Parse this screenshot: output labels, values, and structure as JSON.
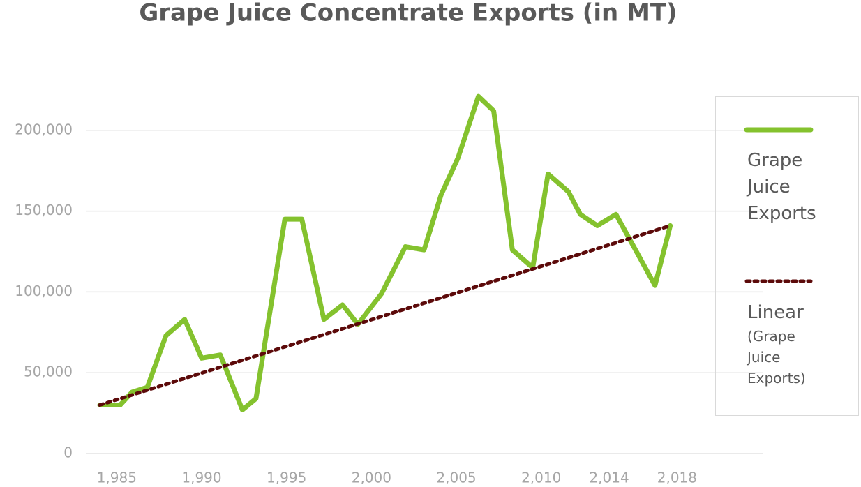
{
  "chart_data": {
    "type": "line",
    "title": "Grape Juice Concentrate Exports (in MT)",
    "series": [
      {
        "name": "Grape Juice Exports",
        "color": "#84c22e",
        "style": "solid",
        "x": [
          1984.0,
          1985.2,
          1985.9,
          1986.8,
          1987.9,
          1989.0,
          1990.0,
          1991.1,
          1992.4,
          1993.2,
          1994.9,
          1995.9,
          1997.2,
          1998.3,
          1999.2,
          2000.6,
          2002.0,
          2003.1,
          2004.1,
          2005.1,
          2006.3,
          2007.2,
          2008.3,
          2009.5,
          2010.4,
          2011.6,
          2012.3,
          2013.3,
          2014.4,
          2015.5,
          2016.7,
          2017.6
        ],
        "values": [
          30000,
          30000,
          38000,
          41000,
          73000,
          83000,
          59000,
          61000,
          27000,
          34000,
          145000,
          145000,
          83000,
          92000,
          80000,
          99000,
          128000,
          126000,
          160000,
          183000,
          221000,
          212000,
          126000,
          115000,
          173000,
          162000,
          148000,
          141000,
          148000,
          127000,
          104000,
          141000
        ]
      },
      {
        "name": "Linear (Grape Juice Exports)",
        "color": "#5c0a0a",
        "style": "dotted",
        "x": [
          1984.0,
          2017.6
        ],
        "values": [
          30000,
          141000
        ]
      }
    ],
    "xlim": [
      1984.0,
      2021.6
    ],
    "xticks": [
      {
        "value": 1985,
        "label": "1,985"
      },
      {
        "value": 1990,
        "label": "1,990"
      },
      {
        "value": 1995,
        "label": "1,995"
      },
      {
        "value": 2000,
        "label": "2,000"
      },
      {
        "value": 2005,
        "label": "2,005"
      },
      {
        "value": 2010,
        "label": "2,010"
      },
      {
        "value": 2014,
        "label": "2,014"
      },
      {
        "value": 2018,
        "label": "2,018"
      }
    ],
    "ylim": [
      0,
      250000
    ],
    "yticks": [
      0,
      {
        "value": 50000,
        "label": "50,000"
      },
      {
        "value": 100000,
        "label": "100,000"
      },
      {
        "value": 150000,
        "label": "150,000"
      },
      {
        "value": 200000,
        "label": "200,000"
      }
    ],
    "grid": true,
    "legend": "right"
  }
}
